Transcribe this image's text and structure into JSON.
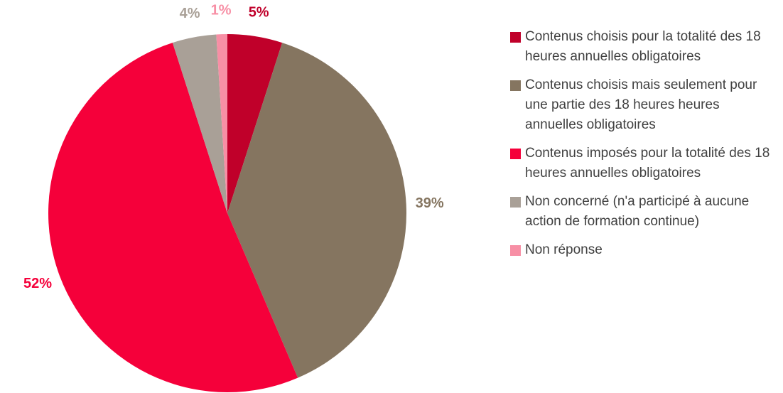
{
  "chart_data": {
    "type": "pie",
    "categories": [
      "Contenus choisis pour la totalité des 18 heures annuelles obligatoires",
      "Contenus choisis mais seulement pour une partie des 18 heures heures annuelles obligatoires",
      "Contenus imposés pour la totalité des 18 heures annuelles obligatoires",
      "Non concerné (n'a participé à aucune action de formation continue)",
      "Non réponse"
    ],
    "values": [
      5,
      39,
      52,
      4,
      1
    ],
    "value_labels": [
      "5%",
      "39%",
      "52%",
      "4%",
      "1%"
    ],
    "colors": [
      "#c0002a",
      "#857560",
      "#f5003a",
      "#a9a097",
      "#f78fa5"
    ],
    "legend": "right"
  }
}
